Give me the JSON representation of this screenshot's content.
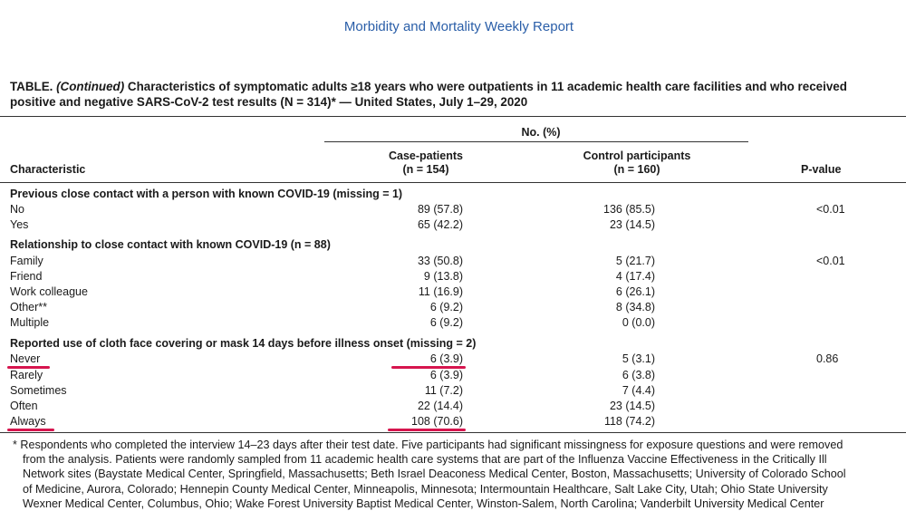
{
  "header": {
    "journal": "Morbidity and Mortality Weekly Report"
  },
  "table": {
    "label": "TABLE. ",
    "continued": "(Continued)",
    "title_line1": " Characteristics of symptomatic adults ≥18 years who were outpatients in 11 academic health care facilities and who received",
    "title_line2": "positive and negative SARS-CoV-2 test results (N = 314)* — United States, July 1–29, 2020",
    "col_group": "No. (%)",
    "col_characteristic": "Characteristic",
    "col_case": "Case-patients",
    "col_case_n": "(n = 154)",
    "col_control": "Control participants",
    "col_control_n": "(n = 160)",
    "col_pvalue": "P-value",
    "rows": [
      {
        "characteristic": "Previous close contact with a person with known COVID-19 (missing = 1)",
        "case": "",
        "control": "",
        "p": ""
      },
      {
        "characteristic": "No",
        "case": "89 (57.8)",
        "control": "136 (85.5)",
        "p": "<0.01"
      },
      {
        "characteristic": "Yes",
        "case": "65 (42.2)",
        "control": "23 (14.5)",
        "p": ""
      },
      {
        "characteristic": "Relationship to close contact with known COVID-19 (n = 88)",
        "case": "",
        "control": "",
        "p": ""
      },
      {
        "characteristic": "Family",
        "case": "33 (50.8)",
        "control": "5 (21.7)",
        "p": "<0.01"
      },
      {
        "characteristic": "Friend",
        "case": "9 (13.8)",
        "control": "4 (17.4)",
        "p": ""
      },
      {
        "characteristic": "Work colleague",
        "case": "11 (16.9)",
        "control": "6 (26.1)",
        "p": ""
      },
      {
        "characteristic": "Other**",
        "case": "6 (9.2)",
        "control": "8 (34.8)",
        "p": ""
      },
      {
        "characteristic": "Multiple",
        "case": "6 (9.2)",
        "control": "0 (0.0)",
        "p": ""
      },
      {
        "characteristic": "Reported use of cloth face covering or mask 14 days before illness onset (missing = 2)",
        "case": "",
        "control": "",
        "p": ""
      },
      {
        "characteristic": "Never",
        "case": "6 (3.9)",
        "control": "5 (3.1)",
        "p": "0.86"
      },
      {
        "characteristic": "Rarely",
        "case": "6 (3.9)",
        "control": "6 (3.8)",
        "p": ""
      },
      {
        "characteristic": "Sometimes",
        "case": "11 (7.2)",
        "control": "7 (4.4)",
        "p": ""
      },
      {
        "characteristic": "Often",
        "case": "22 (14.4)",
        "control": "23 (14.5)",
        "p": ""
      },
      {
        "characteristic": "Always",
        "case": "108 (70.6)",
        "control": "118 (74.2)",
        "p": ""
      }
    ]
  },
  "footnote": {
    "line1": "* Respondents who completed the interview 14–23 days after their test date. Five participants had significant missingness for exposure questions and were removed",
    "line2": "from the analysis. Patients were randomly sampled from 11 academic health care systems that are part of the Influenza Vaccine Effectiveness in the Critically Ill",
    "line3": "Network sites (Baystate Medical Center, Springfield, Massachusetts; Beth Israel Deaconess Medical Center, Boston, Massachusetts; University of Colorado School",
    "line4": "of Medicine, Aurora, Colorado; Hennepin County Medical Center, Minneapolis, Minnesota; Intermountain Healthcare, Salt Lake City, Utah; Ohio State University",
    "line5": "Wexner Medical Center, Columbus, Ohio; Wake Forest University Baptist Medical Center, Winston-Salem, North Carolina; Vanderbilt University Medical Center"
  },
  "highlight_color": "#d6154e"
}
